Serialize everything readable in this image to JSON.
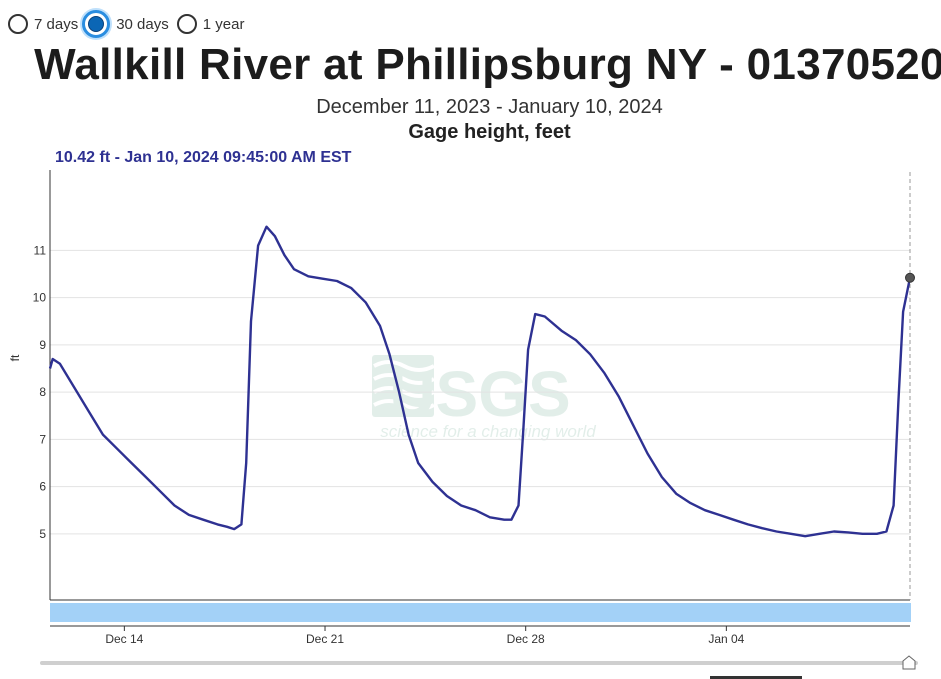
{
  "range_options": [
    {
      "label": "7 days",
      "selected": false
    },
    {
      "label": "30 days",
      "selected": true
    },
    {
      "label": "1 year",
      "selected": false
    }
  ],
  "watermark": {
    "logo": "USGS",
    "tagline": "science for a changing world"
  },
  "colors": {
    "series": "#2e3192",
    "accent": "#0b66b5",
    "navigator": "#a3d1f7"
  },
  "current_reading": "10.42 ft - Jan 10, 2024 09:45:00 AM EST",
  "chart_data": {
    "type": "line",
    "title": "Wallkill River at Phillipsburg NY - 01370520",
    "subtitle": "December 11, 2023 - January 10, 2024",
    "parameter": "Gage height, feet",
    "xlabel": "",
    "ylabel": "ft",
    "xlim": [
      "2023-12-11 09:45",
      "2024-01-10 09:45"
    ],
    "ylim": [
      3.6,
      12.7
    ],
    "yticks": [
      5,
      6,
      7,
      8,
      9,
      10,
      11
    ],
    "xticks": [
      {
        "date": "2023-12-14",
        "label": "Dec 14"
      },
      {
        "date": "2023-12-21",
        "label": "Dec 21"
      },
      {
        "date": "2023-12-28",
        "label": "Dec 28"
      },
      {
        "date": "2024-01-04",
        "label": "Jan 04"
      }
    ],
    "grid": true,
    "series": [
      {
        "values": [
          [
            "2023-12-11 09:45",
            8.5
          ],
          [
            "2023-12-11 12:00",
            8.7
          ],
          [
            "2023-12-11 18:00",
            8.6
          ],
          [
            "2023-12-12 06:00",
            8.1
          ],
          [
            "2023-12-12 18:00",
            7.6
          ],
          [
            "2023-12-13 06:00",
            7.1
          ],
          [
            "2023-12-13 18:00",
            6.8
          ],
          [
            "2023-12-14 06:00",
            6.5
          ],
          [
            "2023-12-14 18:00",
            6.2
          ],
          [
            "2023-12-15 06:00",
            5.9
          ],
          [
            "2023-12-15 18:00",
            5.6
          ],
          [
            "2023-12-16 06:00",
            5.4
          ],
          [
            "2023-12-16 18:00",
            5.3
          ],
          [
            "2023-12-17 06:00",
            5.2
          ],
          [
            "2023-12-17 14:00",
            5.15
          ],
          [
            "2023-12-17 20:00",
            5.1
          ],
          [
            "2023-12-18 02:00",
            5.2
          ],
          [
            "2023-12-18 06:00",
            6.5
          ],
          [
            "2023-12-18 10:00",
            9.5
          ],
          [
            "2023-12-18 16:00",
            11.1
          ],
          [
            "2023-12-18 23:00",
            11.5
          ],
          [
            "2023-12-19 06:00",
            11.3
          ],
          [
            "2023-12-19 14:00",
            10.9
          ],
          [
            "2023-12-19 22:00",
            10.6
          ],
          [
            "2023-12-20 10:00",
            10.45
          ],
          [
            "2023-12-20 22:00",
            10.4
          ],
          [
            "2023-12-21 10:00",
            10.35
          ],
          [
            "2023-12-21 22:00",
            10.2
          ],
          [
            "2023-12-22 10:00",
            9.9
          ],
          [
            "2023-12-22 22:00",
            9.4
          ],
          [
            "2023-12-23 06:00",
            8.8
          ],
          [
            "2023-12-23 14:00",
            8.0
          ],
          [
            "2023-12-23 22:00",
            7.1
          ],
          [
            "2023-12-24 06:00",
            6.5
          ],
          [
            "2023-12-24 18:00",
            6.1
          ],
          [
            "2023-12-25 06:00",
            5.8
          ],
          [
            "2023-12-25 18:00",
            5.6
          ],
          [
            "2023-12-26 06:00",
            5.5
          ],
          [
            "2023-12-26 18:00",
            5.35
          ],
          [
            "2023-12-27 06:00",
            5.3
          ],
          [
            "2023-12-27 12:00",
            5.3
          ],
          [
            "2023-12-27 18:00",
            5.6
          ],
          [
            "2023-12-27 22:00",
            7.2
          ],
          [
            "2023-12-28 02:00",
            8.9
          ],
          [
            "2023-12-28 08:00",
            9.65
          ],
          [
            "2023-12-28 16:00",
            9.6
          ],
          [
            "2023-12-29 06:00",
            9.3
          ],
          [
            "2023-12-29 18:00",
            9.1
          ],
          [
            "2023-12-30 06:00",
            8.8
          ],
          [
            "2023-12-30 18:00",
            8.4
          ],
          [
            "2023-12-31 06:00",
            7.9
          ],
          [
            "2023-12-31 18:00",
            7.3
          ],
          [
            "2024-01-01 06:00",
            6.7
          ],
          [
            "2024-01-01 18:00",
            6.2
          ],
          [
            "2024-01-02 06:00",
            5.85
          ],
          [
            "2024-01-02 18:00",
            5.65
          ],
          [
            "2024-01-03 06:00",
            5.5
          ],
          [
            "2024-01-03 18:00",
            5.4
          ],
          [
            "2024-01-04 06:00",
            5.3
          ],
          [
            "2024-01-04 18:00",
            5.2
          ],
          [
            "2024-01-05 06:00",
            5.12
          ],
          [
            "2024-01-05 18:00",
            5.05
          ],
          [
            "2024-01-06 06:00",
            5.0
          ],
          [
            "2024-01-06 18:00",
            4.95
          ],
          [
            "2024-01-07 06:00",
            5.0
          ],
          [
            "2024-01-07 18:00",
            5.05
          ],
          [
            "2024-01-08 06:00",
            5.03
          ],
          [
            "2024-01-08 18:00",
            5.0
          ],
          [
            "2024-01-09 06:00",
            5.0
          ],
          [
            "2024-01-09 14:00",
            5.05
          ],
          [
            "2024-01-09 20:00",
            5.6
          ],
          [
            "2024-01-10 00:00",
            7.8
          ],
          [
            "2024-01-10 04:00",
            9.7
          ],
          [
            "2024-01-10 09:45",
            10.42
          ]
        ]
      }
    ],
    "highlight_point": {
      "x": "2024-01-10 09:45",
      "y": 10.42
    }
  }
}
